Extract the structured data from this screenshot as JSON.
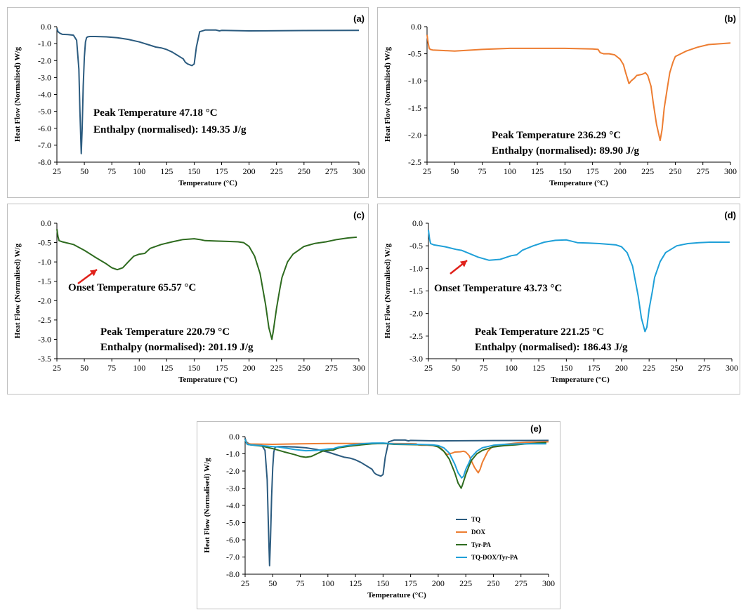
{
  "chart_data": [
    {
      "panel_label": "(a)",
      "type": "line",
      "xlabel": "Temperature (°C)",
      "ylabel": "Heat Flow (Normalised) W/g",
      "xlim": [
        25,
        300
      ],
      "ylim": [
        -8.0,
        0.0
      ],
      "xticks": [
        "25",
        "50",
        "75",
        "100",
        "125",
        "150",
        "175",
        "200",
        "225",
        "250",
        "275",
        "300"
      ],
      "yticks": [
        "0.0",
        "-1.0",
        "-2.0",
        "-3.0",
        "-4.0",
        "-5.0",
        "-6.0",
        "-7.0",
        "-8.0"
      ],
      "grid": false,
      "series": [
        {
          "color": "#2b5b7f",
          "x": [
            25,
            26,
            28,
            30,
            35,
            40,
            43,
            45,
            46,
            47.18,
            48,
            49,
            50,
            51,
            52,
            53,
            55,
            60,
            70,
            80,
            90,
            100,
            110,
            115,
            120,
            125,
            130,
            135,
            140,
            142,
            144,
            146,
            148,
            150,
            152,
            155,
            160,
            170,
            173,
            175,
            200,
            250,
            300
          ],
          "y": [
            -0.1,
            -0.3,
            -0.4,
            -0.45,
            -0.47,
            -0.5,
            -0.8,
            -2.5,
            -5.0,
            -7.5,
            -6.0,
            -3.5,
            -1.8,
            -0.9,
            -0.65,
            -0.6,
            -0.58,
            -0.58,
            -0.6,
            -0.65,
            -0.75,
            -0.9,
            -1.1,
            -1.2,
            -1.25,
            -1.35,
            -1.5,
            -1.7,
            -1.9,
            -2.1,
            -2.2,
            -2.25,
            -2.3,
            -2.2,
            -1.2,
            -0.3,
            -0.2,
            -0.2,
            -0.25,
            -0.22,
            -0.25,
            -0.23,
            -0.22
          ]
        }
      ],
      "annotations": [
        "Peak Temperature 47.18 °C",
        "Enthalpy (normalised): 149.35 J/g"
      ]
    },
    {
      "panel_label": "(b)",
      "type": "line",
      "xlabel": "Temperature (°C)",
      "ylabel": "Heat Flow (Normalised) W/g",
      "xlim": [
        25,
        300
      ],
      "ylim": [
        -2.5,
        0.0
      ],
      "xticks": [
        "25",
        "50",
        "75",
        "100",
        "125",
        "150",
        "175",
        "200",
        "225",
        "250",
        "275",
        "300"
      ],
      "yticks": [
        "0.0",
        "-0.5",
        "-1.0",
        "-1.5",
        "-2.0",
        "-2.5"
      ],
      "grid": false,
      "series": [
        {
          "color": "#ed7d31",
          "x": [
            25,
            26,
            27,
            28,
            30,
            40,
            50,
            75,
            100,
            125,
            150,
            175,
            180,
            182,
            185,
            190,
            195,
            200,
            203,
            205,
            208,
            210,
            213,
            215,
            220,
            223,
            225,
            228,
            230,
            233,
            236.29,
            238,
            240,
            243,
            245,
            248,
            250,
            255,
            260,
            270,
            280,
            300
          ],
          "y": [
            -0.15,
            -0.3,
            -0.4,
            -0.42,
            -0.43,
            -0.44,
            -0.45,
            -0.42,
            -0.4,
            -0.4,
            -0.4,
            -0.41,
            -0.42,
            -0.48,
            -0.5,
            -0.5,
            -0.52,
            -0.6,
            -0.7,
            -0.85,
            -1.05,
            -1.0,
            -0.95,
            -0.9,
            -0.88,
            -0.85,
            -0.9,
            -1.1,
            -1.4,
            -1.8,
            -2.1,
            -1.9,
            -1.5,
            -1.1,
            -0.85,
            -0.65,
            -0.55,
            -0.5,
            -0.45,
            -0.38,
            -0.33,
            -0.3
          ]
        }
      ],
      "annotations": [
        "Peak Temperature 236.29 °C",
        "Enthalpy (normalised): 89.90 J/g"
      ]
    },
    {
      "panel_label": "(c)",
      "type": "line",
      "xlabel": "Temperature (°C)",
      "ylabel": "Heat Flow (Normalised) W/g",
      "xlim": [
        25,
        300
      ],
      "ylim": [
        -3.5,
        0.0
      ],
      "xticks": [
        "25",
        "50",
        "75",
        "100",
        "125",
        "150",
        "175",
        "200",
        "225",
        "250",
        "275",
        "300"
      ],
      "yticks": [
        "0.0",
        "-0.5",
        "-1.0",
        "-1.5",
        "-2.0",
        "-2.5",
        "-3.0",
        "-3.5"
      ],
      "grid": false,
      "series": [
        {
          "color": "#2e6b1f",
          "x": [
            25,
            26,
            27,
            30,
            40,
            50,
            60,
            70,
            75,
            80,
            85,
            90,
            95,
            100,
            105,
            110,
            120,
            130,
            140,
            150,
            155,
            160,
            170,
            180,
            190,
            195,
            200,
            205,
            210,
            215,
            218,
            220.79,
            222,
            225,
            228,
            230,
            235,
            240,
            250,
            260,
            270,
            280,
            290,
            298
          ],
          "y": [
            -0.15,
            -0.35,
            -0.45,
            -0.48,
            -0.55,
            -0.7,
            -0.88,
            -1.05,
            -1.15,
            -1.2,
            -1.15,
            -1.0,
            -0.85,
            -0.8,
            -0.78,
            -0.65,
            -0.55,
            -0.48,
            -0.42,
            -0.4,
            -0.42,
            -0.45,
            -0.46,
            -0.47,
            -0.48,
            -0.5,
            -0.6,
            -0.85,
            -1.3,
            -2.1,
            -2.7,
            -3.0,
            -2.8,
            -2.2,
            -1.7,
            -1.4,
            -1.0,
            -0.8,
            -0.6,
            -0.52,
            -0.48,
            -0.42,
            -0.38,
            -0.36
          ]
        }
      ],
      "annotations": [
        "Onset Temperature  65.57 °C",
        "Peak Temperature 220.79 °C",
        "Enthalpy (normalised): 201.19 J/g"
      ]
    },
    {
      "panel_label": "(d)",
      "type": "line",
      "xlabel": "Temperature (°C)",
      "ylabel": "Heat Flow (Normalised) W/g",
      "xlim": [
        25,
        300
      ],
      "ylim": [
        -3.0,
        0.0
      ],
      "xticks": [
        "25",
        "50",
        "75",
        "100",
        "125",
        "150",
        "175",
        "200",
        "225",
        "250",
        "275",
        "300"
      ],
      "yticks": [
        "0.0",
        "-0.5",
        "-1.0",
        "-1.5",
        "-2.0",
        "-2.5",
        "-3.0"
      ],
      "grid": false,
      "series": [
        {
          "color": "#1fa0d8",
          "x": [
            25,
            26,
            27,
            30,
            40,
            45,
            50,
            55,
            60,
            70,
            80,
            90,
            100,
            105,
            110,
            120,
            130,
            140,
            150,
            155,
            160,
            170,
            180,
            190,
            195,
            200,
            205,
            210,
            215,
            218,
            221.25,
            223,
            225,
            228,
            230,
            235,
            240,
            250,
            260,
            270,
            280,
            290,
            298
          ],
          "y": [
            -0.15,
            -0.35,
            -0.45,
            -0.48,
            -0.52,
            -0.55,
            -0.58,
            -0.6,
            -0.65,
            -0.75,
            -0.82,
            -0.8,
            -0.72,
            -0.7,
            -0.6,
            -0.5,
            -0.42,
            -0.38,
            -0.37,
            -0.4,
            -0.43,
            -0.44,
            -0.45,
            -0.47,
            -0.48,
            -0.52,
            -0.65,
            -0.95,
            -1.6,
            -2.1,
            -2.4,
            -2.3,
            -1.9,
            -1.5,
            -1.2,
            -0.85,
            -0.65,
            -0.5,
            -0.45,
            -0.43,
            -0.42,
            -0.42,
            -0.42
          ]
        }
      ],
      "annotations": [
        "Onset Temperature  43.73 °C",
        "Peak Temperature 221.25 °C",
        "Enthalpy (normalised): 186.43 J/g"
      ]
    },
    {
      "panel_label": "(e)",
      "type": "line",
      "xlabel": "Temperature (°C)",
      "ylabel": "Heat Flow (Normalised) W/g",
      "xlim": [
        25,
        300
      ],
      "ylim": [
        -8.0,
        0.0
      ],
      "xticks": [
        "25",
        "50",
        "75",
        "100",
        "125",
        "150",
        "175",
        "200",
        "225",
        "250",
        "275",
        "300"
      ],
      "yticks": [
        "0.0",
        "-1.0",
        "-2.0",
        "-3.0",
        "-4.0",
        "-5.0",
        "-6.0",
        "-7.0",
        "-8.0"
      ],
      "grid": false,
      "legend": "center-right",
      "series": [
        {
          "name": "TQ",
          "color": "#2b5b7f",
          "x": [
            25,
            26,
            28,
            30,
            35,
            40,
            43,
            45,
            46,
            47.18,
            48,
            49,
            50,
            51,
            52,
            53,
            55,
            60,
            70,
            80,
            90,
            100,
            110,
            115,
            120,
            125,
            130,
            135,
            140,
            142,
            144,
            146,
            148,
            150,
            152,
            155,
            160,
            170,
            173,
            175,
            200,
            250,
            300
          ],
          "y": [
            -0.1,
            -0.3,
            -0.4,
            -0.45,
            -0.47,
            -0.5,
            -0.8,
            -2.5,
            -5.0,
            -7.5,
            -6.0,
            -3.5,
            -1.8,
            -0.9,
            -0.65,
            -0.6,
            -0.58,
            -0.58,
            -0.6,
            -0.65,
            -0.75,
            -0.9,
            -1.1,
            -1.2,
            -1.25,
            -1.35,
            -1.5,
            -1.7,
            -1.9,
            -2.1,
            -2.2,
            -2.25,
            -2.3,
            -2.2,
            -1.2,
            -0.3,
            -0.2,
            -0.2,
            -0.25,
            -0.22,
            -0.25,
            -0.23,
            -0.22
          ]
        },
        {
          "name": "DOX",
          "color": "#ed7d31",
          "x": [
            25,
            26,
            27,
            28,
            30,
            40,
            50,
            75,
            100,
            125,
            150,
            175,
            180,
            182,
            185,
            190,
            195,
            200,
            203,
            205,
            208,
            210,
            213,
            215,
            220,
            223,
            225,
            228,
            230,
            233,
            236.29,
            238,
            240,
            243,
            245,
            248,
            250,
            255,
            260,
            270,
            280,
            300
          ],
          "y": [
            -0.15,
            -0.3,
            -0.4,
            -0.42,
            -0.43,
            -0.44,
            -0.45,
            -0.42,
            -0.4,
            -0.4,
            -0.4,
            -0.41,
            -0.42,
            -0.48,
            -0.5,
            -0.5,
            -0.52,
            -0.6,
            -0.7,
            -0.85,
            -1.05,
            -1.0,
            -0.95,
            -0.9,
            -0.88,
            -0.85,
            -0.9,
            -1.1,
            -1.4,
            -1.8,
            -2.1,
            -1.9,
            -1.5,
            -1.1,
            -0.85,
            -0.65,
            -0.55,
            -0.5,
            -0.45,
            -0.38,
            -0.33,
            -0.3
          ]
        },
        {
          "name": "Tyr-PA",
          "color": "#2e6b1f",
          "x": [
            25,
            26,
            27,
            30,
            40,
            50,
            60,
            70,
            75,
            80,
            85,
            90,
            95,
            100,
            105,
            110,
            120,
            130,
            140,
            150,
            155,
            160,
            170,
            180,
            190,
            195,
            200,
            205,
            210,
            215,
            218,
            220.79,
            222,
            225,
            228,
            230,
            235,
            240,
            250,
            260,
            270,
            280,
            290,
            298
          ],
          "y": [
            -0.15,
            -0.35,
            -0.45,
            -0.48,
            -0.55,
            -0.7,
            -0.88,
            -1.05,
            -1.15,
            -1.2,
            -1.15,
            -1.0,
            -0.85,
            -0.8,
            -0.78,
            -0.65,
            -0.55,
            -0.48,
            -0.42,
            -0.4,
            -0.42,
            -0.45,
            -0.46,
            -0.47,
            -0.48,
            -0.5,
            -0.6,
            -0.85,
            -1.3,
            -2.1,
            -2.7,
            -3.0,
            -2.8,
            -2.2,
            -1.7,
            -1.4,
            -1.0,
            -0.8,
            -0.6,
            -0.52,
            -0.48,
            -0.42,
            -0.38,
            -0.36
          ]
        },
        {
          "name": "TQ-DOX/Tyr-PA",
          "color": "#1fa0d8",
          "x": [
            25,
            26,
            27,
            30,
            40,
            45,
            50,
            55,
            60,
            70,
            80,
            90,
            100,
            105,
            110,
            120,
            130,
            140,
            150,
            155,
            160,
            170,
            180,
            190,
            195,
            200,
            205,
            210,
            215,
            218,
            221.25,
            223,
            225,
            228,
            230,
            235,
            240,
            250,
            260,
            270,
            280,
            290,
            298
          ],
          "y": [
            -0.15,
            -0.35,
            -0.45,
            -0.48,
            -0.52,
            -0.55,
            -0.58,
            -0.6,
            -0.65,
            -0.75,
            -0.82,
            -0.8,
            -0.72,
            -0.7,
            -0.6,
            -0.5,
            -0.42,
            -0.38,
            -0.37,
            -0.4,
            -0.43,
            -0.44,
            -0.45,
            -0.47,
            -0.48,
            -0.52,
            -0.65,
            -0.95,
            -1.6,
            -2.1,
            -2.4,
            -2.3,
            -1.9,
            -1.5,
            -1.2,
            -0.85,
            -0.65,
            -0.5,
            -0.45,
            -0.43,
            -0.42,
            -0.42,
            -0.42
          ]
        }
      ],
      "annotations": []
    }
  ]
}
